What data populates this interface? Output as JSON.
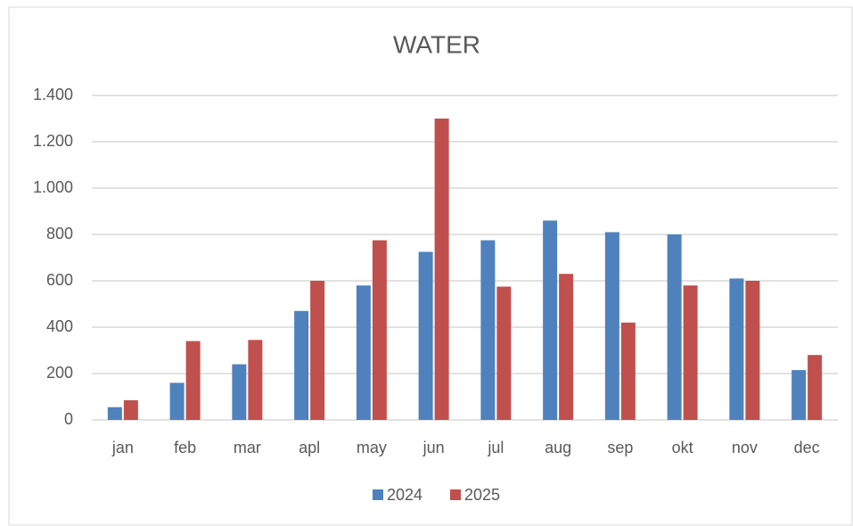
{
  "chart_data": {
    "type": "bar",
    "title": "WATER",
    "categories": [
      "jan",
      "feb",
      "mar",
      "apl",
      "may",
      "jun",
      "jul",
      "aug",
      "sep",
      "okt",
      "nov",
      "dec"
    ],
    "series": [
      {
        "name": "2024",
        "color": "#4f81bd",
        "values": [
          55,
          160,
          240,
          470,
          580,
          725,
          775,
          860,
          810,
          800,
          610,
          215
        ]
      },
      {
        "name": "2025",
        "color": "#c0504d",
        "values": [
          85,
          340,
          345,
          600,
          775,
          1300,
          575,
          630,
          420,
          580,
          600,
          280
        ]
      }
    ],
    "ylim": [
      0,
      1400
    ],
    "yticks": [
      0,
      200,
      400,
      600,
      800,
      {
        "value": 1000,
        "label": "1.000"
      },
      {
        "value": 1200,
        "label": "1.200"
      },
      {
        "value": 1400,
        "label": "1.400"
      }
    ],
    "grid": true,
    "legend": "bottom"
  }
}
